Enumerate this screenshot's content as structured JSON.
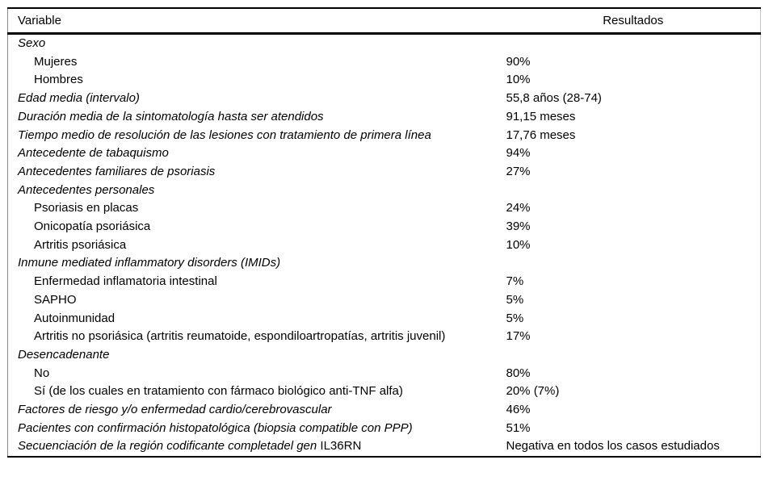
{
  "table": {
    "headers": [
      "Variable",
      "Resultados"
    ],
    "rows": [
      {
        "style": "section",
        "label": "Sexo",
        "value": ""
      },
      {
        "style": "sub",
        "label": "Mujeres",
        "value": "90%"
      },
      {
        "style": "sub",
        "label": "Hombres",
        "value": "10%"
      },
      {
        "style": "main",
        "label": "Edad media (intervalo)",
        "value": "55,8 años (28-74)"
      },
      {
        "style": "main",
        "label": "Duración media de la sintomatología hasta ser atendidos",
        "value": "91,15 meses"
      },
      {
        "style": "main",
        "label": "Tiempo medio de resolución de las lesiones con tratamiento de primera línea",
        "value": "17,76 meses"
      },
      {
        "style": "main",
        "label": "Antecedente de tabaquismo",
        "value": "94%"
      },
      {
        "style": "main",
        "label": "Antecedentes familiares de psoriasis",
        "value": "27%"
      },
      {
        "style": "section",
        "label": "Antecedentes personales",
        "value": ""
      },
      {
        "style": "sub",
        "label": "Psoriasis en placas",
        "value": "24%"
      },
      {
        "style": "sub",
        "label": "Onicopatía psoriásica",
        "value": "39%"
      },
      {
        "style": "sub",
        "label": "Artritis psoriásica",
        "value": "10%"
      },
      {
        "style": "section",
        "label": "Inmune mediated inflammatory disorders (IMIDs)",
        "value": ""
      },
      {
        "style": "sub",
        "label": "Enfermedad inflamatoria intestinal",
        "value": "7%"
      },
      {
        "style": "sub",
        "label": "SAPHO",
        "value": "5%"
      },
      {
        "style": "sub",
        "label": "Autoinmunidad",
        "value": "5%"
      },
      {
        "style": "sub",
        "label": "Artritis no psoriásica (artritis reumatoide, espondiloartropatías, artritis juvenil)",
        "value": "17%"
      },
      {
        "style": "section",
        "label": "Desencadenante",
        "value": ""
      },
      {
        "style": "sub",
        "label": "No",
        "value": "80%"
      },
      {
        "style": "sub",
        "label": "Sí (de los cuales en tratamiento con fármaco biológico anti-TNF alfa)",
        "value": "20% (7%)"
      },
      {
        "style": "main",
        "label": "Factores de riesgo y/o enfermedad cardio/cerebrovascular",
        "value": "46%"
      },
      {
        "style": "main",
        "label": "Pacientes con confirmación histopatológica (biopsia compatible con PPP)",
        "value": "51%"
      },
      {
        "style": "main",
        "label": "Secuenciación de la región codificante completadel gen ",
        "label_upright": "IL36RN",
        "value": "Negativa en todos los casos estudiados"
      }
    ],
    "colors": {
      "rule": "#000000",
      "side_hairline_left": "#8a8a8a",
      "side_hairline_right": "#c4c4c4",
      "text": "#000000",
      "background": "#ffffff"
    }
  }
}
